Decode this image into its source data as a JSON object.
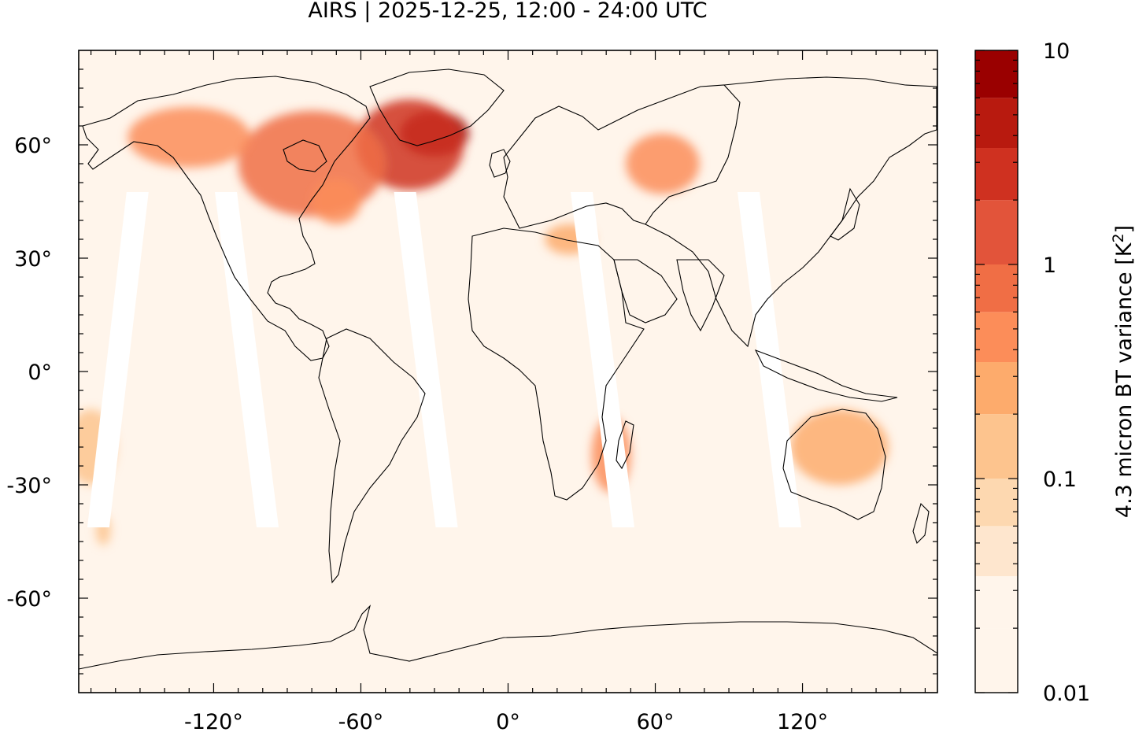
{
  "title": "AIRS | 2025-12-25, 12:00 - 24:00 UTC",
  "map": {
    "projection": "equirectangular",
    "lon_range": [
      -175,
      175
    ],
    "lat_range": [
      -85,
      85
    ],
    "x_ticks": [
      {
        "value": -120,
        "label": "-120°"
      },
      {
        "value": -60,
        "label": "-60°"
      },
      {
        "value": 0,
        "label": "0°"
      },
      {
        "value": 60,
        "label": "60°"
      },
      {
        "value": 120,
        "label": "120°"
      }
    ],
    "y_ticks": [
      {
        "value": 60,
        "label": "60°"
      },
      {
        "value": 30,
        "label": "30°"
      },
      {
        "value": 0,
        "label": "0°"
      },
      {
        "value": -30,
        "label": "-30°"
      },
      {
        "value": -60,
        "label": "-60°"
      }
    ],
    "background_color": "#fff5eb",
    "swath_gaps": [
      {
        "lon_top": -151,
        "lon_bottom": -167
      },
      {
        "lon_top": -115,
        "lon_bottom": -98
      },
      {
        "lon_top": -42,
        "lon_bottom": -25
      },
      {
        "lon_top": 30,
        "lon_bottom": 47
      },
      {
        "lon_top": 98,
        "lon_bottom": 115
      }
    ],
    "hotspots": [
      {
        "lon": -30,
        "lat": 63,
        "value": 8,
        "r_lon": 14,
        "r_lat": 6
      },
      {
        "lon": -40,
        "lat": 60,
        "value": 2,
        "r_lon": 22,
        "r_lat": 12
      },
      {
        "lon": -80,
        "lat": 55,
        "value": 0.6,
        "r_lon": 30,
        "r_lat": 14
      },
      {
        "lon": -130,
        "lat": 62,
        "value": 0.5,
        "r_lon": 25,
        "r_lat": 8
      },
      {
        "lon": -70,
        "lat": 45,
        "value": 0.5,
        "r_lon": 10,
        "r_lat": 6
      },
      {
        "lon": 63,
        "lat": 55,
        "value": 0.45,
        "r_lon": 15,
        "r_lat": 8
      },
      {
        "lon": 25,
        "lat": 35,
        "value": 0.3,
        "r_lon": 10,
        "r_lat": 4
      },
      {
        "lon": 42,
        "lat": -22,
        "value": 0.35,
        "r_lon": 8,
        "r_lat": 10
      },
      {
        "lon": 135,
        "lat": -20,
        "value": 0.2,
        "r_lon": 20,
        "r_lat": 10
      },
      {
        "lon": -170,
        "lat": -20,
        "value": 0.15,
        "r_lon": 10,
        "r_lat": 10
      },
      {
        "lon": -165,
        "lat": -42,
        "value": 0.15,
        "r_lon": 3,
        "r_lat": 4
      }
    ]
  },
  "colorbar": {
    "label_main": "4.3 micron BT variance [K",
    "label_sup": "2",
    "label_end": "]",
    "scale": "log",
    "range": [
      0.01,
      10
    ],
    "tick_labels": [
      {
        "value": 10,
        "label": "10"
      },
      {
        "value": 1,
        "label": "1"
      },
      {
        "value": 0.1,
        "label": "0.1"
      },
      {
        "value": 0.01,
        "label": "0.01"
      }
    ],
    "levels": [
      0.01,
      0.02,
      0.035,
      0.06,
      0.1,
      0.2,
      0.35,
      0.6,
      1,
      2,
      3.5,
      6,
      10
    ],
    "colors": [
      "#fff5eb",
      "#fff5eb",
      "#fee6ce",
      "#fdd8b0",
      "#fdc48e",
      "#fdab6c",
      "#fc8d59",
      "#f06e45",
      "#e2543a",
      "#cf3120",
      "#b81a0f",
      "#9a0000"
    ]
  }
}
